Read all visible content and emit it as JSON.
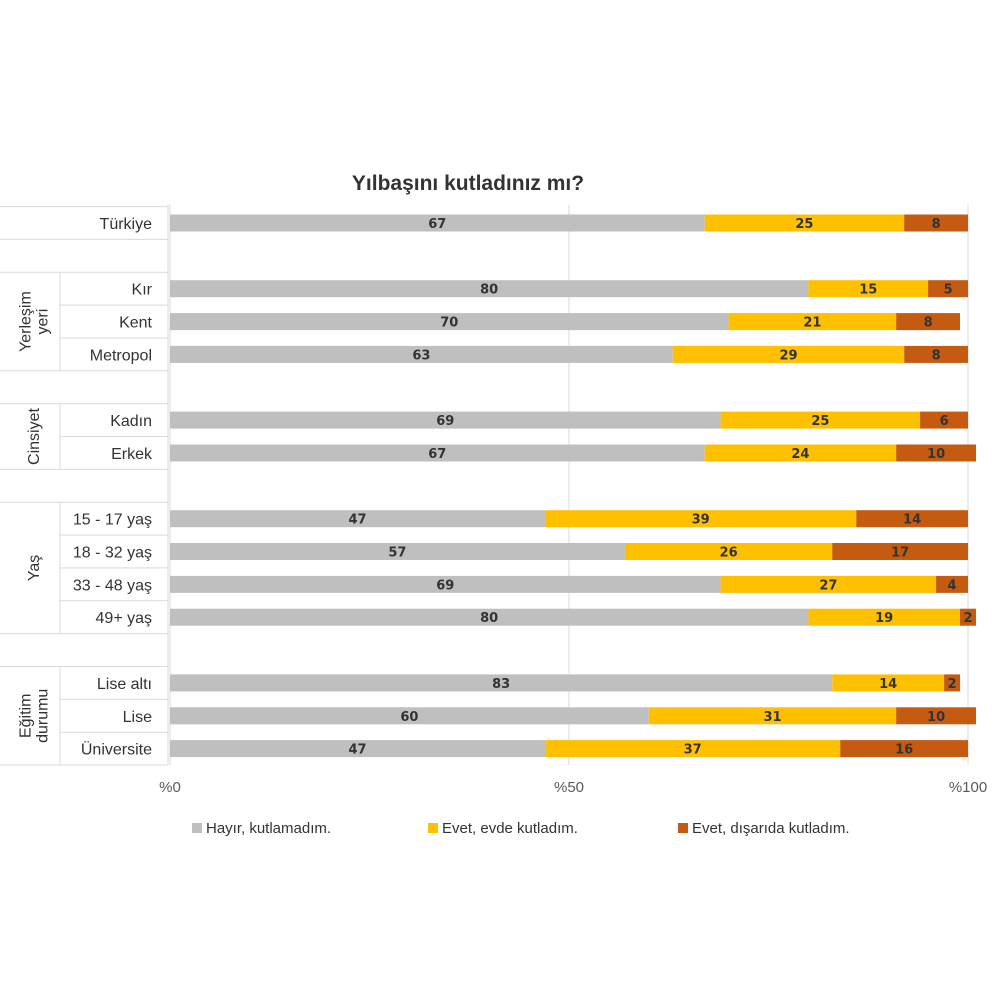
{
  "chart_data": {
    "type": "bar",
    "orientation": "horizontal",
    "stacked": true,
    "title": "Yılbaşını kutladınız mı?",
    "xlim": [
      0,
      100
    ],
    "x_ticks": [
      "%0",
      "%50",
      "%100"
    ],
    "grid": true,
    "legend_position": "bottom",
    "colors": [
      "#bfbfbf",
      "#ffc000",
      "#c55a11"
    ],
    "series_names": [
      "Hayır, kutlamadım.",
      "Evet, evde kutladım.",
      "Evet, dışarıda kutladım."
    ],
    "groups": [
      {
        "name": null,
        "rows": [
          {
            "label": "Türkiye",
            "values": [
              67,
              25,
              8
            ]
          }
        ]
      },
      {
        "name": [
          "Yerleşim",
          "yeri"
        ],
        "rows": [
          {
            "label": "Kır",
            "values": [
              80,
              15,
              5
            ]
          },
          {
            "label": "Kent",
            "values": [
              70,
              21,
              8
            ]
          },
          {
            "label": "Metropol",
            "values": [
              63,
              29,
              8
            ]
          }
        ]
      },
      {
        "name": [
          "Cinsiyet"
        ],
        "rows": [
          {
            "label": "Kadın",
            "values": [
              69,
              25,
              6
            ]
          },
          {
            "label": "Erkek",
            "values": [
              67,
              24,
              10
            ]
          }
        ]
      },
      {
        "name": [
          "Yaş"
        ],
        "rows": [
          {
            "label": "15 - 17 yaş",
            "values": [
              47,
              39,
              14
            ]
          },
          {
            "label": "18 - 32 yaş",
            "values": [
              57,
              26,
              17
            ]
          },
          {
            "label": "33 - 48 yaş",
            "values": [
              69,
              27,
              4
            ]
          },
          {
            "label": "49+ yaş",
            "values": [
              80,
              19,
              2
            ]
          }
        ]
      },
      {
        "name": [
          "Eğitim",
          "durumu"
        ],
        "rows": [
          {
            "label": "Lise altı",
            "values": [
              83,
              14,
              2
            ]
          },
          {
            "label": "Lise",
            "values": [
              60,
              31,
              10
            ]
          },
          {
            "label": "Üniversite",
            "values": [
              47,
              37,
              16
            ]
          }
        ]
      }
    ]
  }
}
